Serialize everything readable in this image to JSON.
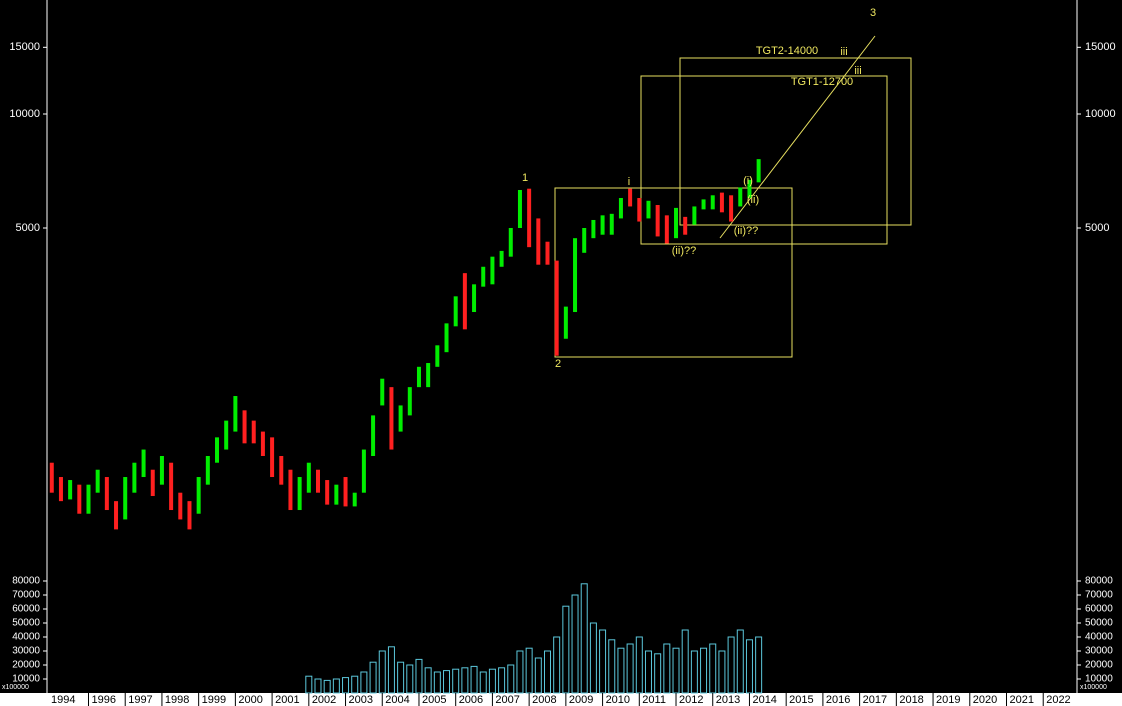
{
  "chart_data": [
    {
      "type": "ohlc",
      "log_y": true,
      "xlim": [
        1994.87,
        2022.92
      ],
      "ylim": [
        625,
        20000
      ],
      "yticks": [
        5000,
        10000,
        15000
      ],
      "series": [
        {
          "color": "#00ee00",
          "x": [
            1995.5,
            1996.0,
            1996.25,
            1997.0,
            1997.25,
            1997.5,
            1998.0,
            1999.0,
            1999.25,
            1999.5,
            1999.75,
            2000.0,
            2001.75,
            2002.0,
            2002.75,
            2003.25,
            2003.5,
            2003.75,
            2004.0,
            2004.5,
            2004.75,
            2005.0,
            2005.25,
            2005.5,
            2005.75,
            2006.0,
            2006.5,
            2006.75,
            2007.0,
            2007.25,
            2007.5,
            2007.75,
            2009.0,
            2009.25,
            2009.5,
            2009.75,
            2010.0,
            2010.25,
            2010.5,
            2011.25,
            2012.0,
            2012.5,
            2012.75,
            2013.0,
            2013.75,
            2014.0,
            2014.25
          ],
          "high": [
            1080,
            1050,
            1150,
            1100,
            1200,
            1300,
            1250,
            1100,
            1250,
            1400,
            1550,
            1800,
            1100,
            1200,
            1050,
            1000,
            1300,
            1600,
            2000,
            1700,
            1900,
            2150,
            2200,
            2450,
            2800,
            3300,
            3550,
            3950,
            4200,
            4350,
            5000,
            6300,
            3100,
            4700,
            5000,
            5250,
            5400,
            5450,
            6000,
            5900,
            5650,
            5700,
            5950,
            6100,
            6400,
            6700,
            7600
          ],
          "low": [
            960,
            880,
            1000,
            850,
            1000,
            1100,
            1050,
            880,
            1050,
            1200,
            1300,
            1450,
            900,
            1000,
            930,
            920,
            1000,
            1250,
            1700,
            1450,
            1600,
            1900,
            1900,
            2150,
            2350,
            2750,
            3000,
            3500,
            3550,
            3950,
            4200,
            5000,
            2550,
            3000,
            4300,
            4700,
            4800,
            4800,
            5300,
            5300,
            4700,
            5100,
            5600,
            5600,
            5700,
            6000,
            6600
          ]
        },
        {
          "color": "#ff2020",
          "x": [
            1995.0,
            1995.25,
            1995.75,
            1996.5,
            1996.75,
            1997.75,
            1998.25,
            1998.5,
            1998.75,
            2000.25,
            2000.5,
            2000.75,
            2001.0,
            2001.25,
            2001.5,
            2002.25,
            2002.5,
            2003.0,
            2004.25,
            2006.25,
            2008.0,
            2008.25,
            2008.5,
            2008.75,
            2010.75,
            2011.0,
            2011.5,
            2011.75,
            2012.25,
            2013.25,
            2013.5
          ],
          "high": [
            1200,
            1100,
            1050,
            1100,
            950,
            1150,
            1200,
            1000,
            950,
            1650,
            1550,
            1450,
            1400,
            1250,
            1150,
            1150,
            1080,
            1100,
            1900,
            3800,
            6350,
            5300,
            4600,
            4100,
            6350,
            6000,
            5750,
            5400,
            5350,
            6200,
            6100
          ],
          "low": [
            1000,
            950,
            880,
            900,
            800,
            980,
            900,
            850,
            800,
            1350,
            1350,
            1250,
            1100,
            1050,
            900,
            1000,
            930,
            920,
            1300,
            2700,
            4450,
            4000,
            4000,
            2300,
            5700,
            5200,
            4750,
            4550,
            4800,
            5500,
            5200
          ]
        }
      ],
      "annotations": [
        "1",
        "2",
        "i",
        "(i)",
        "(ii)",
        "(ii)??",
        "(ii)??",
        "TGT2-14000",
        "iii",
        "TGT1-12700",
        "iii",
        "3"
      ],
      "annotation_color": "#f0e860"
    },
    {
      "type": "bar",
      "color": "#5cc8dc",
      "xlim": [
        1994.87,
        2022.92
      ],
      "ylim": [
        0,
        90000
      ],
      "yticks": [
        10000,
        20000,
        30000,
        40000,
        50000,
        60000,
        70000,
        80000
      ],
      "y_unit": "x100000",
      "xticks": [
        1994,
        1996,
        1997,
        1998,
        1999,
        2000,
        2001,
        2002,
        2003,
        2004,
        2005,
        2006,
        2007,
        2008,
        2009,
        2010,
        2011,
        2012,
        2013,
        2014,
        2015,
        2016,
        2017,
        2018,
        2019,
        2020,
        2021,
        2022
      ],
      "x": [
        2002.0,
        2002.25,
        2002.5,
        2002.75,
        2003.0,
        2003.25,
        2003.5,
        2003.75,
        2004.0,
        2004.25,
        2004.5,
        2004.75,
        2005.0,
        2005.25,
        2005.5,
        2005.75,
        2006.0,
        2006.25,
        2006.5,
        2006.75,
        2007.0,
        2007.25,
        2007.5,
        2007.75,
        2008.0,
        2008.25,
        2008.5,
        2008.75,
        2009.0,
        2009.25,
        2009.5,
        2009.75,
        2010.0,
        2010.25,
        2010.5,
        2010.75,
        2011.0,
        2011.25,
        2011.5,
        2011.75,
        2012.0,
        2012.25,
        2012.5,
        2012.75,
        2013.0,
        2013.25,
        2013.5,
        2013.75,
        2014.0,
        2014.25
      ],
      "values": [
        12000,
        10000,
        9000,
        10000,
        11000,
        12000,
        15000,
        22000,
        30000,
        33000,
        22000,
        20000,
        24000,
        18000,
        15000,
        16000,
        17000,
        18000,
        19000,
        15000,
        17000,
        18000,
        20000,
        30000,
        32000,
        25000,
        30000,
        40000,
        62000,
        70000,
        78000,
        50000,
        45000,
        38000,
        32000,
        35000,
        40000,
        30000,
        28000,
        35000,
        32000,
        45000,
        30000,
        32000,
        35000,
        30000,
        40000,
        45000,
        38000,
        40000
      ]
    }
  ]
}
